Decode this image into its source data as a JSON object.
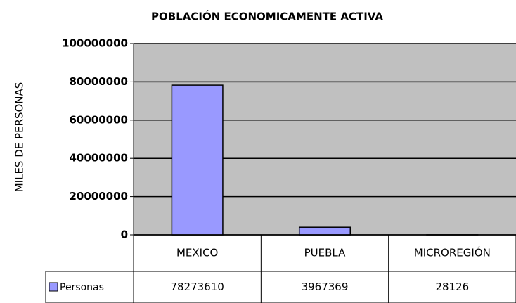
{
  "chart_data": {
    "type": "bar",
    "title": "POBLACIÓN ECONOMICAMENTE ACTIVA",
    "y_axis_label": "MILES DE PERSONAS",
    "categories": [
      "MEXICO",
      "PUEBLA",
      "MICROREGIÓN"
    ],
    "series": [
      {
        "name": "Personas",
        "color": "#9999ff",
        "values": [
          78273610,
          3967369,
          28126
        ]
      }
    ],
    "ylim": [
      0,
      100000000
    ],
    "yticks": [
      0,
      20000000,
      40000000,
      60000000,
      80000000,
      100000000
    ],
    "grid": true,
    "plot_background": "#c0c0c0",
    "data_table": true
  }
}
